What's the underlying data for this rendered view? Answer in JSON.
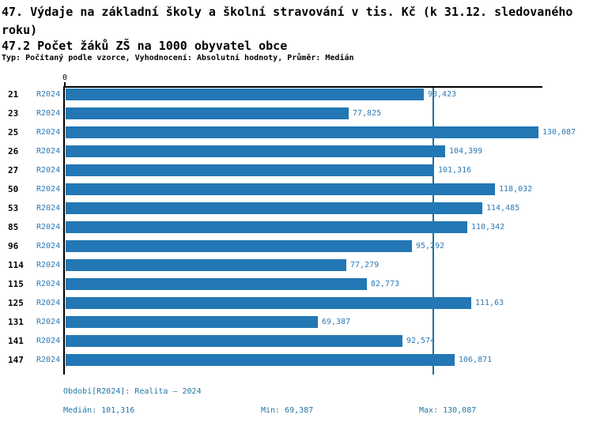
{
  "header": {
    "title": "47. Výdaje na základní školy a školní stravování v tis. Kč (k 31.12. sledovaného roku)",
    "subtitle": "47.2 Počet žáků ZŠ na 1000 obyvatel obce",
    "meta": "Typ: Počítaný podle vzorce, Vyhodnocení: Absolutní hodnoty, Průměr: Medián"
  },
  "chart_data": {
    "type": "bar",
    "orientation": "horizontal",
    "title": "47.2 Počet žáků ZŠ na 1000 obyvatel obce",
    "series_label": "R2024",
    "categories": [
      "21",
      "23",
      "25",
      "26",
      "27",
      "50",
      "53",
      "85",
      "96",
      "114",
      "115",
      "125",
      "131",
      "141",
      "147"
    ],
    "values": [
      98.423,
      77.825,
      130.087,
      104.399,
      101.316,
      118.032,
      114.485,
      110.342,
      95.292,
      77.279,
      82.773,
      111.63,
      69.387,
      92.574,
      106.871
    ],
    "value_labels": [
      "98,423",
      "77,825",
      "130,087",
      "104,399",
      "101,316",
      "118,032",
      "114,485",
      "110,342",
      "95,292",
      "77,279",
      "82,773",
      "111,63",
      "69,387",
      "92,574",
      "106,871"
    ],
    "axis_origin_label": "0",
    "xlim": [
      0,
      131.3
    ],
    "median_value": 101.316,
    "grid": false,
    "legend_position": "none",
    "bar_color": "#2277b4",
    "label_color": "#2d7ab6",
    "median_line_color": "#1d6f9e",
    "footer_text_color": "#1f78a4"
  },
  "footer": {
    "period": "Období[R2024]: Realita – 2024",
    "median": "Medián: 101,316",
    "min": "Min: 69,387",
    "max": "Max: 130,087"
  }
}
